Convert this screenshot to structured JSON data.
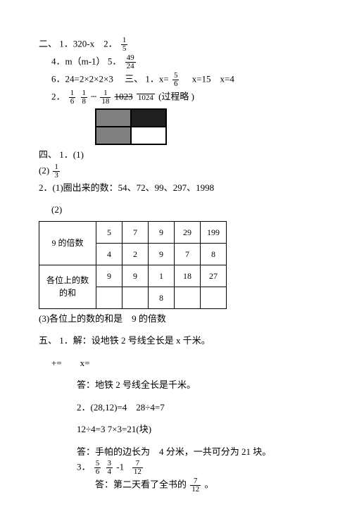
{
  "section2": {
    "label": "二、",
    "items": {
      "i1": "1．320-x",
      "i2_pre": "2．",
      "i2_frac": {
        "num": "1",
        "den": "5"
      },
      "i4": "4．m（m-1）",
      "i5_pre": "5．",
      "i5_frac": {
        "num": "49",
        "den": "24"
      },
      "i6": "6．24=2×2×2×3"
    }
  },
  "section3": {
    "label": "三、",
    "i1_pre": "1．x=",
    "i1_frac": {
      "num": "5",
      "den": "6"
    },
    "i1_rest": "　x=15　x=4",
    "i2_pre": "2．",
    "i2_frac1": {
      "num": "1",
      "den": "6"
    },
    "i2_frac2": {
      "num": "1",
      "den": "8"
    },
    "i2_frac3": {
      "num": "1",
      "den": "18"
    },
    "i2_strike": "1023",
    "i2_frac4": {
      "num": "",
      "den": "1024"
    },
    "i2_note": "(过程略 )"
  },
  "section4": {
    "label": "四、",
    "i1": "1．(1)",
    "i2_pre": "(2)",
    "i2_frac": {
      "num": "1",
      "den": "3"
    },
    "i2_q1": "2．(1)圈出来的数：54、72、99、297、1998",
    "sub2": "(2)",
    "i3": "(3)各位上的数的和是　9 的倍数"
  },
  "table": {
    "r1h": "9 的倍数",
    "r1": [
      "5",
      "7",
      "9",
      "29",
      "199"
    ],
    "r1b": [
      "4",
      "2",
      "9",
      "7",
      "8"
    ],
    "r2h": "各位上的数",
    "r2h2": "的和",
    "r2": [
      "9",
      "9",
      "1",
      "18",
      "27"
    ],
    "r2b": [
      "",
      "",
      "8",
      "",
      ""
    ]
  },
  "section5": {
    "label": "五、",
    "i1": "1．解：设地铁 2 号线全长是 x 千米。",
    "eq": "+=　　x=",
    "ans1": "答：地铁 2 号线全长是千米。",
    "i2a": "2．(28,12)=4　28÷4=7",
    "i2b": "12÷4=3 7×3=21(块)",
    "ans2": "答：手帕的边长为　4 分米，一共可分为 21 块。",
    "i3_pre": "3．",
    "i3_f1": {
      "num": "5",
      "den": "6"
    },
    "i3_f2": {
      "num": "3",
      "den": "4"
    },
    "i3_mid": "-1",
    "i3_f3": {
      "num": "7",
      "den": "12"
    },
    "ans3_pre": "答：第二天看了全书的",
    "ans3_frac": {
      "num": "7",
      "den": "12"
    },
    "ans3_post": "。"
  }
}
